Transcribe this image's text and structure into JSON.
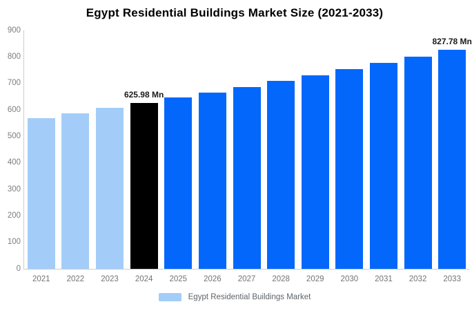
{
  "title": "Egypt Residential Buildings Market Size (2021-2033)",
  "chart_data": {
    "type": "bar",
    "title": "Egypt Residential Buildings Market Size (2021-2033)",
    "xlabel": "",
    "ylabel": "",
    "ylim": [
      0,
      900
    ],
    "y_ticks": [
      0,
      100,
      200,
      300,
      400,
      500,
      600,
      700,
      800,
      900
    ],
    "grid": false,
    "legend_position": "bottom",
    "categories": [
      "2021",
      "2022",
      "2023",
      "2024",
      "2025",
      "2026",
      "2027",
      "2028",
      "2029",
      "2030",
      "2031",
      "2032",
      "2033"
    ],
    "values": [
      570,
      588,
      607,
      625.98,
      646,
      666,
      687,
      709,
      731,
      754,
      778,
      802,
      827.78
    ],
    "bar_colors": [
      "#a3cdf8",
      "#a3cdf8",
      "#a3cdf8",
      "#000000",
      "#0467fb",
      "#0467fb",
      "#0467fb",
      "#0467fb",
      "#0467fb",
      "#0467fb",
      "#0467fb",
      "#0467fb",
      "#0467fb"
    ],
    "bar_labels": {
      "2024": "625.98 Mn",
      "2033": "827.78 Mn"
    },
    "colors": {
      "historical": "#a3cdf8",
      "highlight": "#000000",
      "forecast": "#0467fb",
      "axis": "#cccccc",
      "tick_text": "#7d7d7d",
      "background": "#ffffff"
    },
    "legend": [
      {
        "label": "Egypt Residential Buildings Market",
        "color": "#a3cdf8"
      }
    ]
  }
}
